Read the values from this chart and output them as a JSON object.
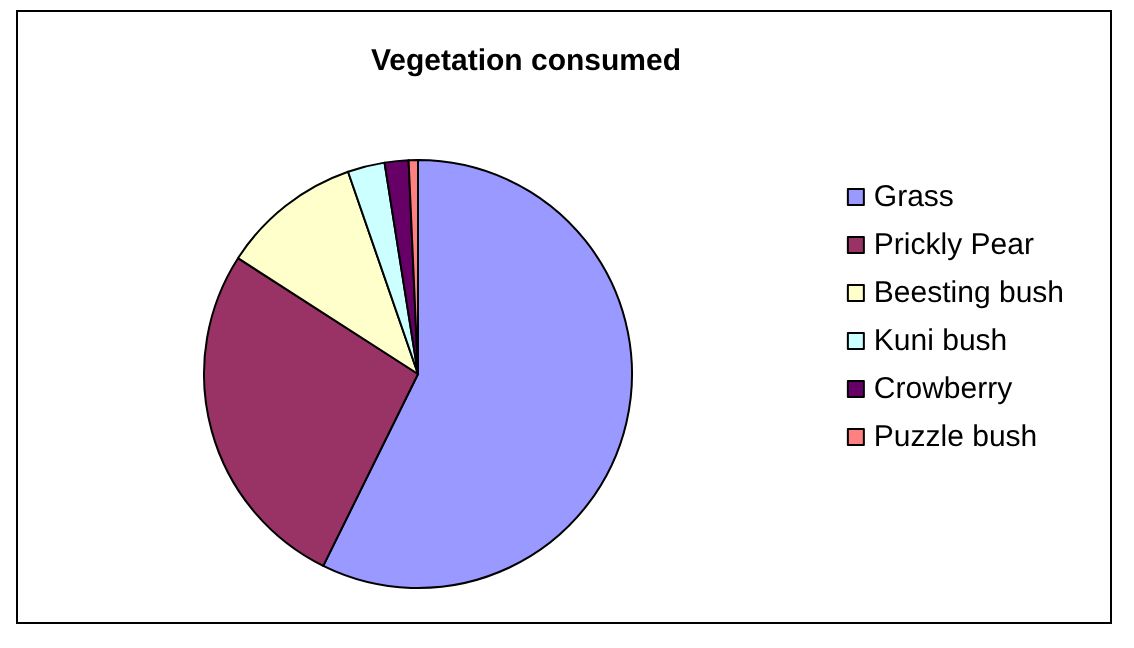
{
  "chart_data": {
    "type": "pie",
    "title": "Vegetation consumed",
    "categories": [
      "Grass",
      "Prickly Pear",
      "Beesting bush",
      "Kuni bush",
      "Crowberry",
      "Puzzle bush"
    ],
    "values": [
      57.3,
      26.8,
      10.6,
      2.8,
      1.8,
      0.7
    ],
    "colors": [
      "#9999ff",
      "#993366",
      "#ffffcc",
      "#ccffff",
      "#660066",
      "#ff8080"
    ],
    "legend": "right"
  }
}
